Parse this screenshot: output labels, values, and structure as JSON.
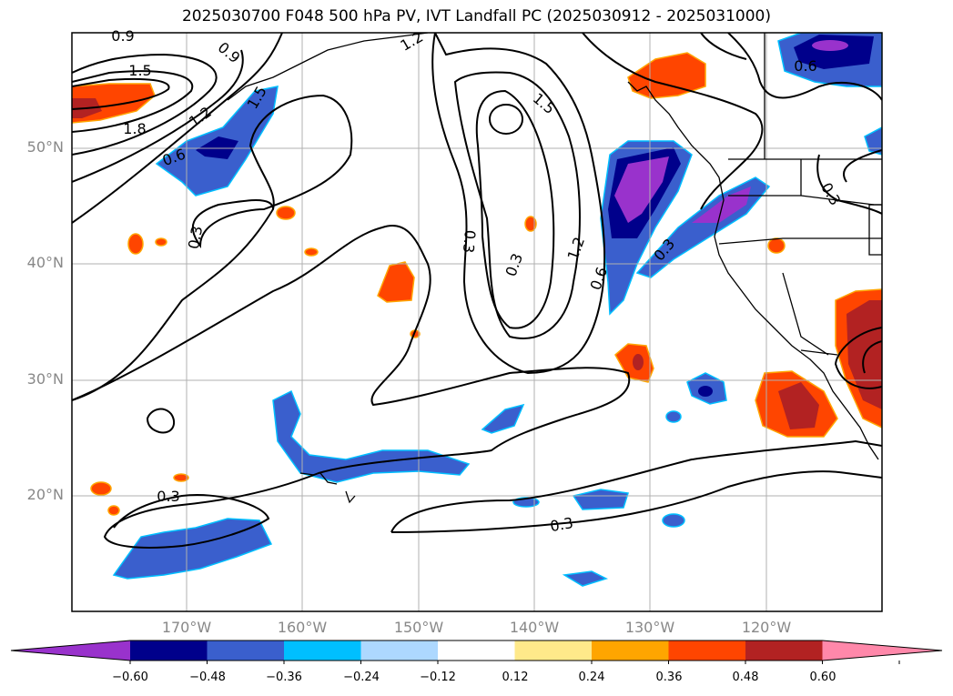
{
  "title": "2025030700 F048 500 hPa PV, IVT Landfall PC (2025030912 - 2025031000)",
  "lat_labels": [
    "50°N",
    "40°N",
    "30°N",
    "20°N"
  ],
  "lon_labels": [
    "170°W",
    "160°W",
    "150°W",
    "140°W",
    "130°W",
    "120°W"
  ],
  "contour_labels": [
    "0.9",
    "1.5",
    "1.8",
    "1.2",
    "0.6",
    "0.3",
    "1.5",
    "0.9",
    "1.5",
    "1.2",
    "0.6",
    "0.3",
    "0.3",
    "0.6",
    "0.3",
    "0.3",
    "0.3",
    "0.3",
    "1.2"
  ],
  "colorbar": {
    "ticks": [
      "−0.60",
      "−0.48",
      "−0.36",
      "−0.24",
      "−0.12",
      "0.12",
      "0.24",
      "0.36",
      "0.48",
      "0.60"
    ],
    "colors": [
      "#9932cc",
      "#00008b",
      "#3a5fcd",
      "#00bfff",
      "#add8ff",
      "#ffffff",
      "#ffe98a",
      "#ffa500",
      "#ff4500",
      "#b22222",
      "#ff88aa"
    ]
  },
  "colors": {
    "purple": "#9932cc",
    "navy": "#00008b",
    "blue": "#3a5fcd",
    "sky": "#00bfff",
    "pale": "#add8ff",
    "yellow": "#ffe98a",
    "orange": "#ffa500",
    "redorange": "#ff4500",
    "brick": "#b22222",
    "pink": "#ff88aa"
  }
}
